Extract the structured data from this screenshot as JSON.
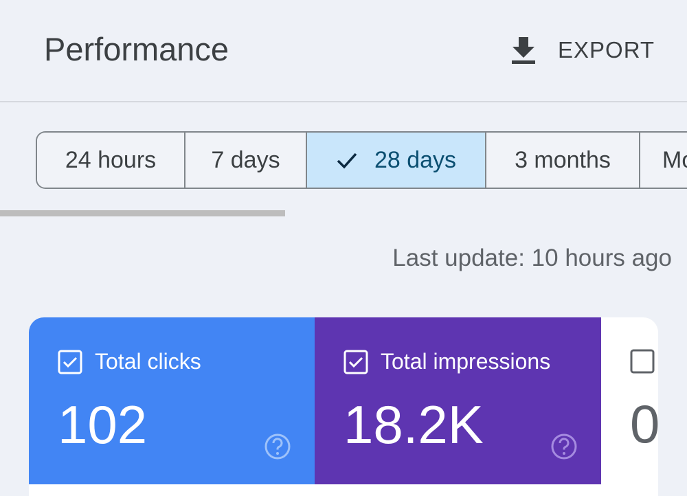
{
  "header": {
    "title": "Performance",
    "export": "EXPORT"
  },
  "tabs": [
    "24 hours",
    "7 days",
    "28 days",
    "3 months",
    "Mo"
  ],
  "last_update": "Last update: 10 hours ago",
  "cards": [
    {
      "label": "Total clicks",
      "value": "102"
    },
    {
      "label": "Total impressions",
      "value": "18.2K"
    },
    {
      "value": "0"
    }
  ]
}
